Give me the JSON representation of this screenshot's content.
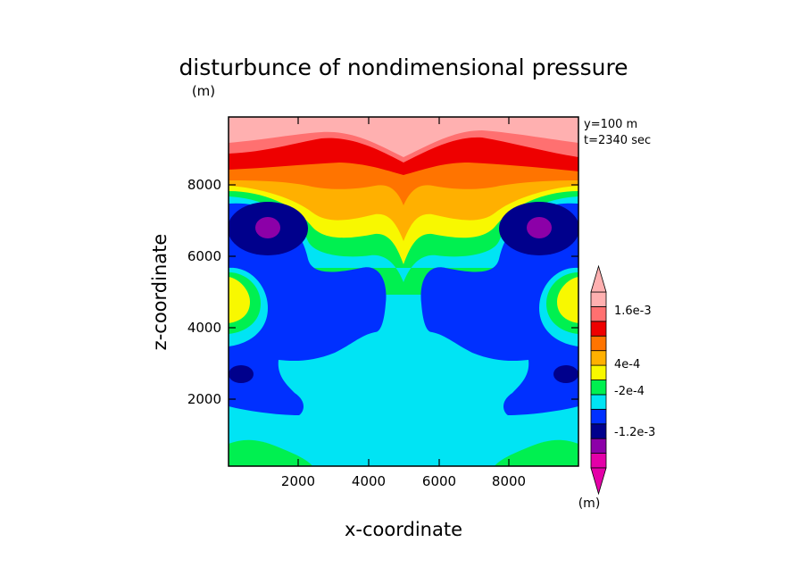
{
  "chart_data": {
    "type": "heatmap",
    "title": "disturbunce of nondimensional pressure",
    "x_unit_label": "(m)",
    "xlabel": "x-coordinate",
    "ylabel": "z-coordinate",
    "xlim": [
      0,
      10000
    ],
    "ylim": [
      0,
      10000
    ],
    "x_ticks": [
      "2000",
      "4000",
      "6000",
      "8000"
    ],
    "y_ticks": [
      "2000",
      "4000",
      "6000",
      "8000"
    ],
    "annotations": [
      "y=100 m",
      "t=2340 sec"
    ],
    "colorbar": {
      "unit_label": "(m)",
      "tick_labels": [
        "1.6e-3",
        "4e-4",
        "-2e-4",
        "-1.2e-3"
      ],
      "colors": [
        "#e400a8",
        "#8c00a8",
        "#00008c",
        "#0030ff",
        "#00e4f4",
        "#00f050",
        "#f8f800",
        "#ffb000",
        "#ff7400",
        "#ee0000",
        "#ff7070",
        "#ffb0b0"
      ],
      "extend": "both"
    },
    "grid": false
  }
}
